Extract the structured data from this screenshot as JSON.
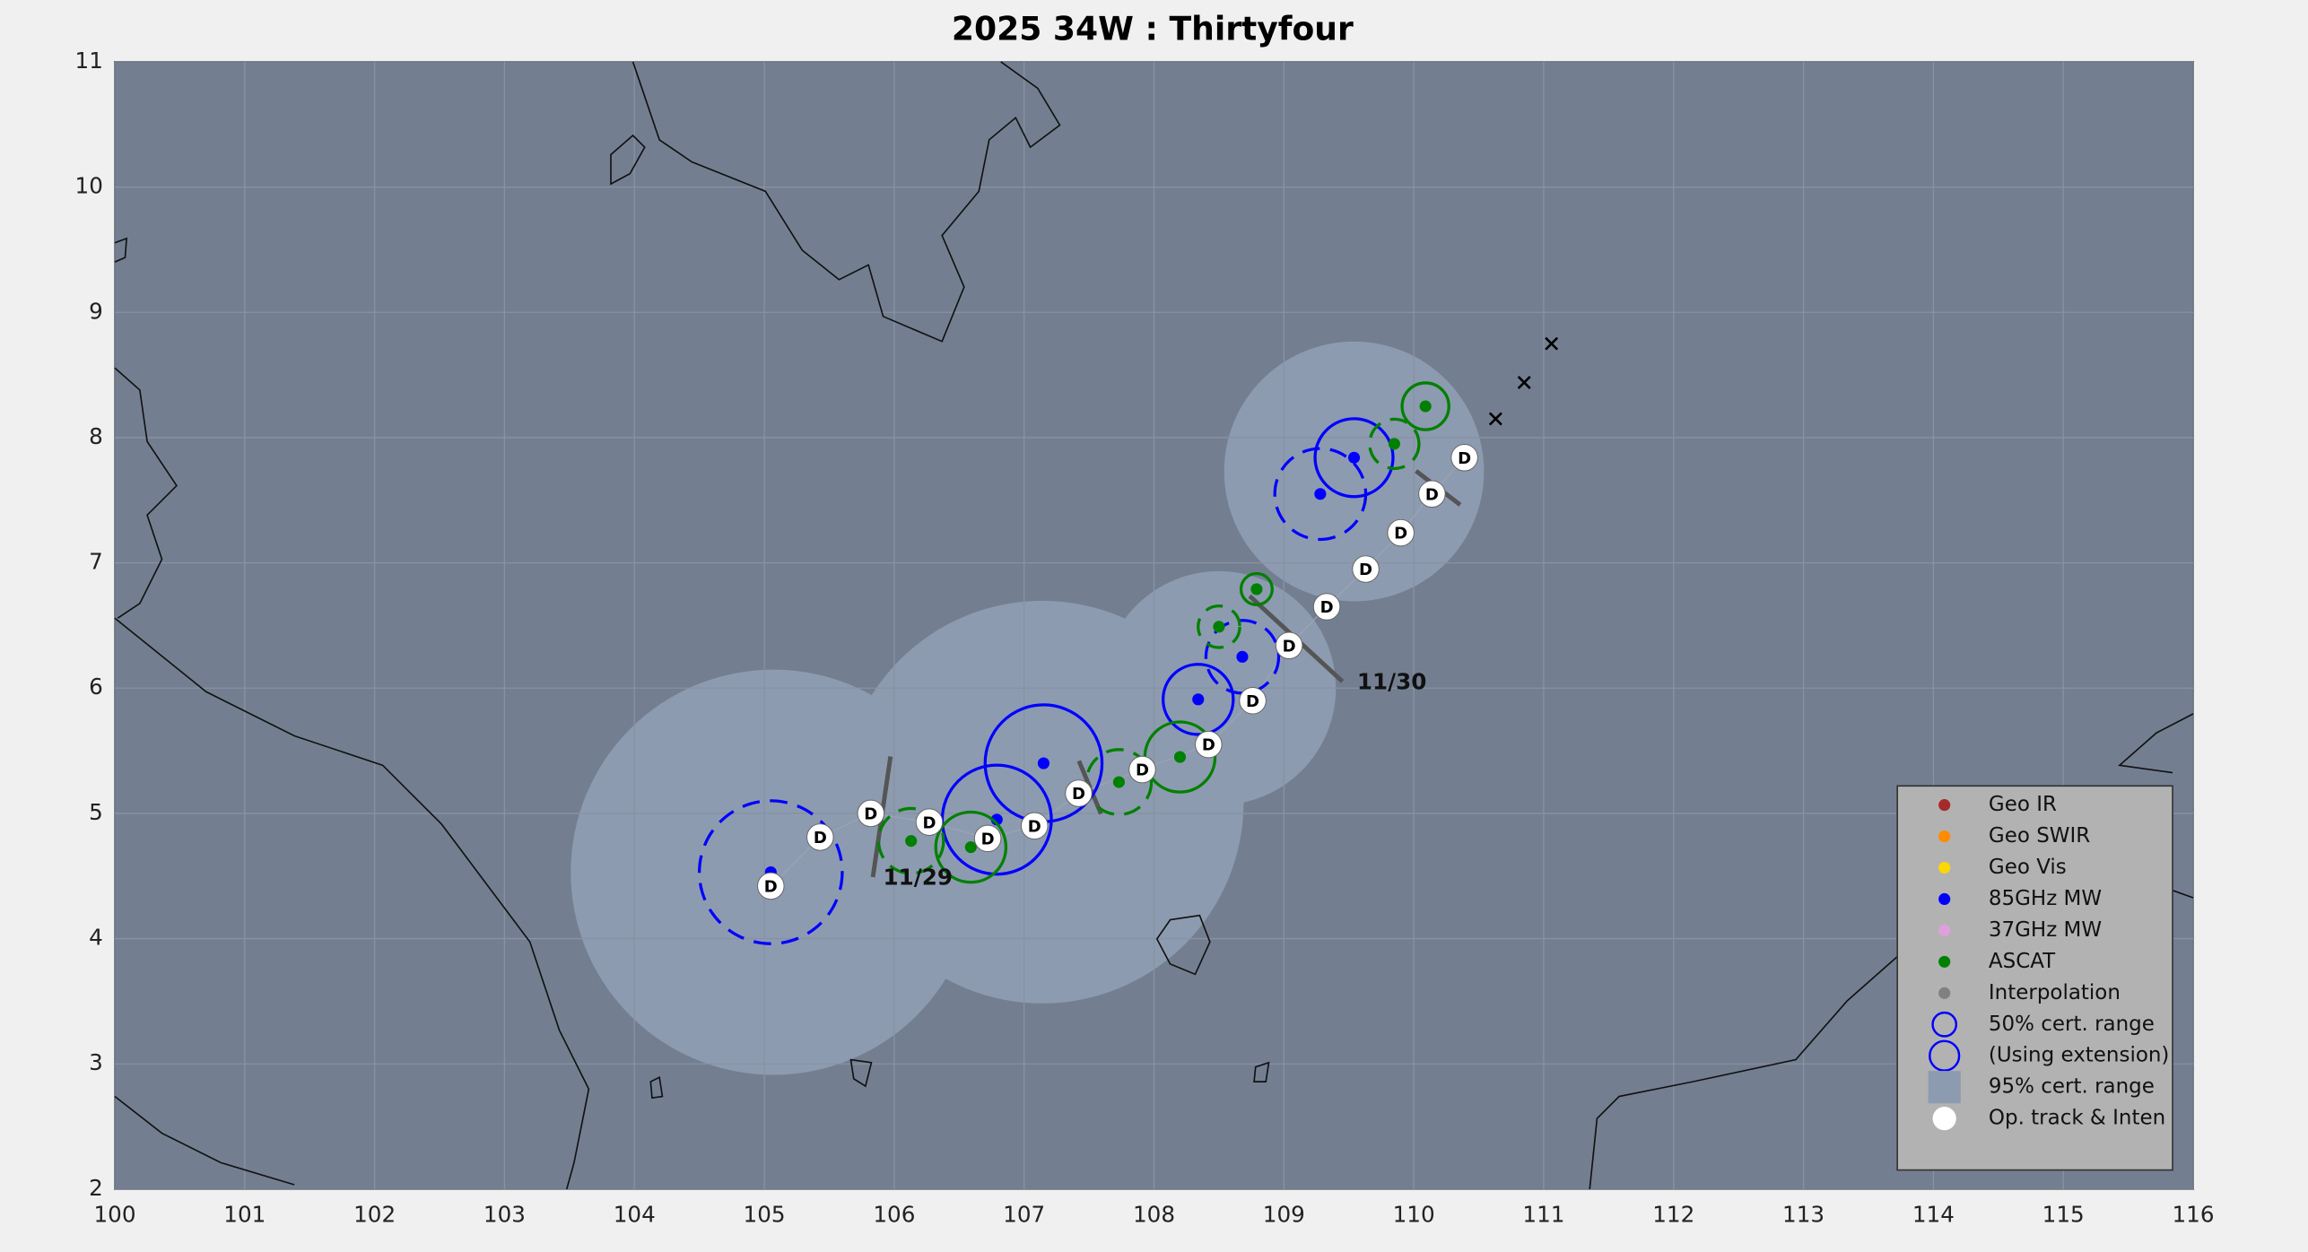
{
  "chart_data": {
    "type": "map",
    "title": "2025  34W :  Thirtyfour",
    "xlim": [
      100,
      116
    ],
    "ylim": [
      2,
      11
    ],
    "xticks": [
      100,
      101,
      102,
      103,
      104,
      105,
      106,
      107,
      108,
      109,
      110,
      111,
      112,
      113,
      114,
      115,
      116
    ],
    "yticks": [
      2,
      3,
      4,
      5,
      6,
      7,
      8,
      9,
      10,
      11
    ],
    "grid": true,
    "cert95": {
      "color": "#8d9bb0",
      "lon": [
        105.07,
        107.14,
        108.5,
        109.54
      ],
      "lat": [
        4.53,
        5.09,
        6.0,
        7.73
      ],
      "radius": [
        1.56,
        1.55,
        0.9,
        1.0
      ]
    },
    "series": [
      {
        "color": "#0000ff",
        "lon": [
          105.05,
          106.79,
          107.15,
          108.34,
          108.68,
          109.28,
          109.54
        ],
        "lat": [
          4.53,
          4.95,
          5.4,
          5.91,
          6.25,
          7.55,
          7.84
        ],
        "radius": [
          0.55,
          0.42,
          0.45,
          0.27,
          0.28,
          0.35,
          0.3
        ],
        "dashed": [
          true,
          false,
          false,
          false,
          true,
          true,
          false
        ]
      },
      {
        "color": "#008000",
        "lon": [
          106.13,
          106.59,
          107.73,
          108.2,
          108.5,
          108.79,
          109.85,
          110.09
        ],
        "lat": [
          4.78,
          4.73,
          5.25,
          5.45,
          6.49,
          6.79,
          7.95,
          8.25
        ],
        "radius": [
          0.25,
          0.27,
          0.25,
          0.27,
          0.16,
          0.12,
          0.19,
          0.18
        ],
        "dashed": [
          true,
          false,
          true,
          false,
          true,
          false,
          true,
          false
        ]
      }
    ],
    "op_track": {
      "label": "D",
      "lon": [
        105.05,
        105.43,
        105.82,
        106.27,
        106.72,
        107.08,
        107.42,
        107.91,
        108.42,
        108.76,
        109.04,
        109.33,
        109.63,
        109.9,
        110.14,
        110.39
      ],
      "lat": [
        4.42,
        4.81,
        5.0,
        4.93,
        4.8,
        4.9,
        5.16,
        5.35,
        5.55,
        5.9,
        6.34,
        6.65,
        6.95,
        7.24,
        7.55,
        7.84
      ]
    },
    "forecast": {
      "lon": [
        110.63,
        110.85,
        111.06
      ],
      "lat": [
        8.15,
        8.44,
        8.75
      ]
    },
    "date_labels": [
      "11/29",
      "11/30"
    ],
    "legend": [
      {
        "label": "Geo IR",
        "marker": "dot",
        "color": "#a52a2a"
      },
      {
        "label": "Geo SWIR",
        "marker": "dot",
        "color": "#ff8c00"
      },
      {
        "label": "Geo Vis",
        "marker": "dot",
        "color": "#ffd700"
      },
      {
        "label": "85GHz MW",
        "marker": "dot",
        "color": "#0000ff"
      },
      {
        "label": "37GHz MW",
        "marker": "dot",
        "color": "#dda0dd"
      },
      {
        "label": "ASCAT",
        "marker": "dot",
        "color": "#008000"
      },
      {
        "label": "Interpolation",
        "marker": "dot",
        "color": "#808080"
      },
      {
        "label": "50% cert. range",
        "marker": "ring",
        "color": "#0000ff"
      },
      {
        "label": "(Using extension)",
        "marker": "bigring",
        "color": "#0000ff"
      },
      {
        "label": "95% cert. range",
        "marker": "square",
        "color": "#8d9bb0"
      },
      {
        "label": "Op. track & Inten",
        "marker": "disc",
        "color": "#ffffff"
      }
    ]
  }
}
